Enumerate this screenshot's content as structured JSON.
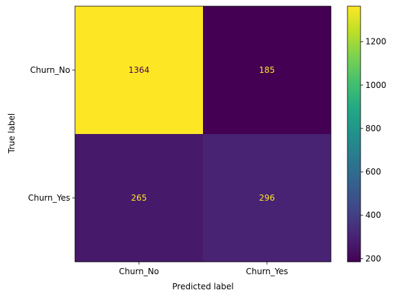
{
  "chart_data": {
    "type": "heatmap",
    "title": "",
    "xlabel": "Predicted label",
    "ylabel": "True label",
    "x_categories": [
      "Churn_No",
      "Churn_Yes"
    ],
    "y_categories": [
      "Churn_No",
      "Churn_Yes"
    ],
    "matrix": [
      [
        1364,
        185
      ],
      [
        265,
        296
      ]
    ],
    "cell_text_colors": [
      [
        "#440154",
        "#fde725"
      ],
      [
        "#fde725",
        "#fde725"
      ]
    ],
    "colormap": "viridis",
    "colorbar": {
      "min": 185,
      "max": 1364,
      "ticks": [
        200,
        400,
        600,
        800,
        1000,
        1200
      ],
      "tick_labels": [
        "200",
        "400",
        "600",
        "800",
        "1000",
        "1200"
      ]
    },
    "grid": false
  }
}
